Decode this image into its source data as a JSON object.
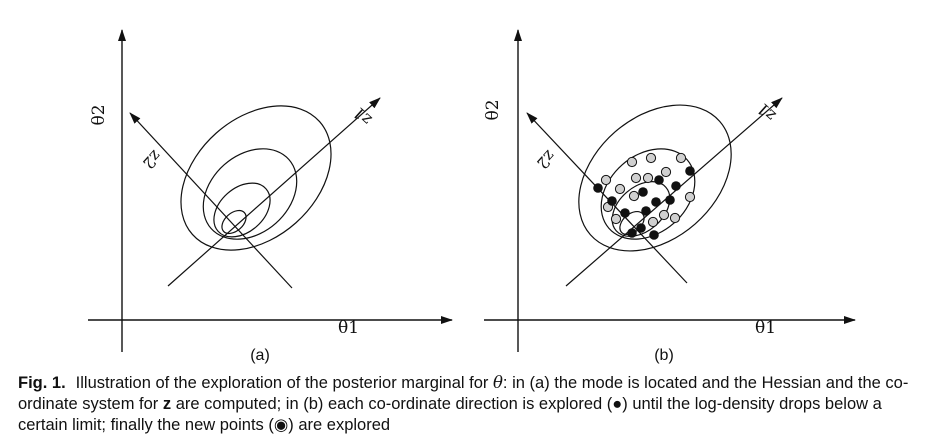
{
  "panels": [
    {
      "id": "a",
      "label": "(a)",
      "x_axis_label": "θ1",
      "y_axis_label": "θ2",
      "z1_label": "z1",
      "z2_label": "z2"
    },
    {
      "id": "b",
      "label": "(b)",
      "x_axis_label": "θ1",
      "y_axis_label": "θ2",
      "z1_label": "z1",
      "z2_label": "z2"
    }
  ],
  "caption": {
    "label": "Fig. 1.",
    "text_1": "Illustration of the exploration of the posterior marginal for ",
    "theta": "θ",
    "text_2": ": in (a) the mode is located and the Hessian and the co-ordinate system for ",
    "bold_z": "z",
    "text_3": " are computed; in (b) each co-ordinate direction is explored (●) until the log-density drops below a certain limit; finally the new points (◉) are explored"
  },
  "colors": {
    "ink": "#111111",
    "grey_point": "#d0d0d0"
  }
}
